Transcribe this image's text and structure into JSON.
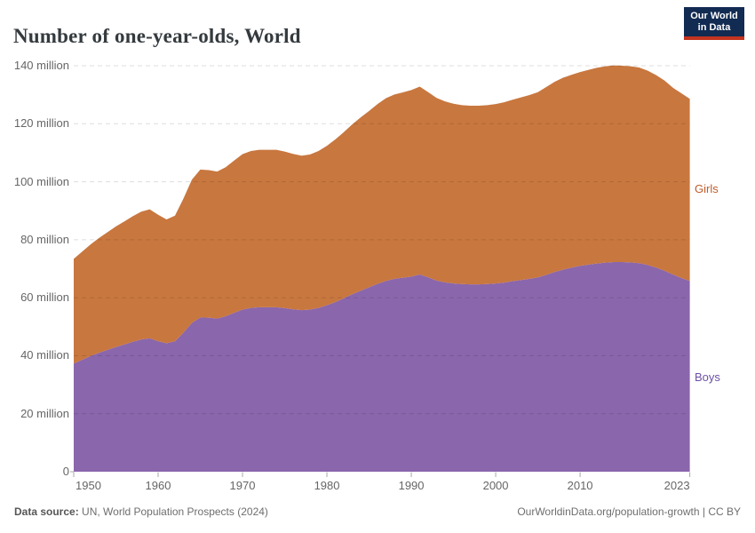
{
  "header": {
    "title": "Number of one-year-olds, World",
    "logo": {
      "line1": "Our World",
      "line2": "in Data",
      "bg_color": "#122B52",
      "bar_color": "#C4341F"
    }
  },
  "footer": {
    "source_label": "Data source:",
    "source_text": " UN, World Population Prospects (2024)",
    "right_text": "OurWorldinData.org/population-growth | CC BY"
  },
  "chart_data": {
    "type": "area",
    "stacked": true,
    "title": "Number of one-year-olds, World",
    "unit": "million",
    "x_start": 1950,
    "x_end": 2023,
    "x": [
      1950,
      1951,
      1952,
      1953,
      1954,
      1955,
      1956,
      1957,
      1958,
      1959,
      1960,
      1961,
      1962,
      1963,
      1964,
      1965,
      1966,
      1967,
      1968,
      1969,
      1970,
      1971,
      1972,
      1973,
      1974,
      1975,
      1976,
      1977,
      1978,
      1979,
      1980,
      1981,
      1982,
      1983,
      1984,
      1985,
      1986,
      1987,
      1988,
      1989,
      1990,
      1991,
      1992,
      1993,
      1994,
      1995,
      1996,
      1997,
      1998,
      1999,
      2000,
      2001,
      2002,
      2003,
      2004,
      2005,
      2006,
      2007,
      2008,
      2009,
      2010,
      2011,
      2012,
      2013,
      2014,
      2015,
      2016,
      2017,
      2018,
      2019,
      2020,
      2021,
      2022,
      2023
    ],
    "stack_order_bottom_to_top": [
      "Boys",
      "Girls"
    ],
    "series": [
      {
        "name": "Boys",
        "color": "#8A66AC",
        "label_color": "#6D51A5",
        "values": [
          37.3,
          38.6,
          39.9,
          41.0,
          42.0,
          43.0,
          43.9,
          44.8,
          45.6,
          46.0,
          45.0,
          44.3,
          45.0,
          48.0,
          51.3,
          53.2,
          53.1,
          52.8,
          53.6,
          54.8,
          55.9,
          56.5,
          56.7,
          56.7,
          56.7,
          56.4,
          56.0,
          55.7,
          55.9,
          56.5,
          57.4,
          58.5,
          59.8,
          61.2,
          62.4,
          63.6,
          64.8,
          65.8,
          66.5,
          66.9,
          67.3,
          68.0,
          67.0,
          65.9,
          65.3,
          64.9,
          64.7,
          64.6,
          64.6,
          64.7,
          64.9,
          65.2,
          65.7,
          66.1,
          66.5,
          67.0,
          67.9,
          68.9,
          69.7,
          70.4,
          71.0,
          71.4,
          71.8,
          72.1,
          72.3,
          72.3,
          72.2,
          71.9,
          71.3,
          70.4,
          69.3,
          68.0,
          66.8,
          65.8
        ]
      },
      {
        "name": "Girls",
        "color": "#C8773F",
        "label_color": "#BE5B2A",
        "values": [
          36.1,
          37.3,
          38.5,
          39.6,
          40.6,
          41.6,
          42.4,
          43.3,
          44.1,
          44.5,
          43.6,
          42.7,
          43.3,
          46.2,
          49.4,
          51.0,
          50.9,
          50.7,
          51.4,
          52.5,
          53.6,
          54.1,
          54.3,
          54.3,
          54.3,
          54.0,
          53.6,
          53.3,
          53.5,
          54.1,
          55.0,
          56.1,
          57.3,
          58.6,
          59.8,
          60.8,
          62.0,
          63.0,
          63.6,
          63.9,
          64.3,
          64.8,
          63.9,
          63.0,
          62.4,
          62.0,
          61.7,
          61.6,
          61.6,
          61.7,
          61.9,
          62.2,
          62.6,
          63.0,
          63.4,
          63.9,
          64.8,
          65.6,
          66.2,
          66.5,
          66.8,
          67.2,
          67.5,
          67.7,
          67.8,
          67.7,
          67.6,
          67.5,
          67.0,
          66.4,
          65.6,
          64.4,
          63.7,
          62.8
        ]
      }
    ],
    "ylim": [
      0,
      140
    ],
    "yticks": [
      {
        "value": 0,
        "label": "0"
      },
      {
        "value": 20,
        "label": "20 million"
      },
      {
        "value": 40,
        "label": "40 million"
      },
      {
        "value": 60,
        "label": "60 million"
      },
      {
        "value": 80,
        "label": "80 million"
      },
      {
        "value": 100,
        "label": "100 million"
      },
      {
        "value": 120,
        "label": "120 million"
      },
      {
        "value": 140,
        "label": "140 million"
      }
    ],
    "xticks": [
      {
        "value": 1950,
        "label": "1950"
      },
      {
        "value": 1960,
        "label": "1960"
      },
      {
        "value": 1970,
        "label": "1970"
      },
      {
        "value": 1980,
        "label": "1980"
      },
      {
        "value": 1990,
        "label": "1990"
      },
      {
        "value": 2000,
        "label": "2000"
      },
      {
        "value": 2010,
        "label": "2010"
      },
      {
        "value": 2023,
        "label": "2023"
      }
    ],
    "grid": "dashed horizontal",
    "legend_position": "right edge labels"
  }
}
